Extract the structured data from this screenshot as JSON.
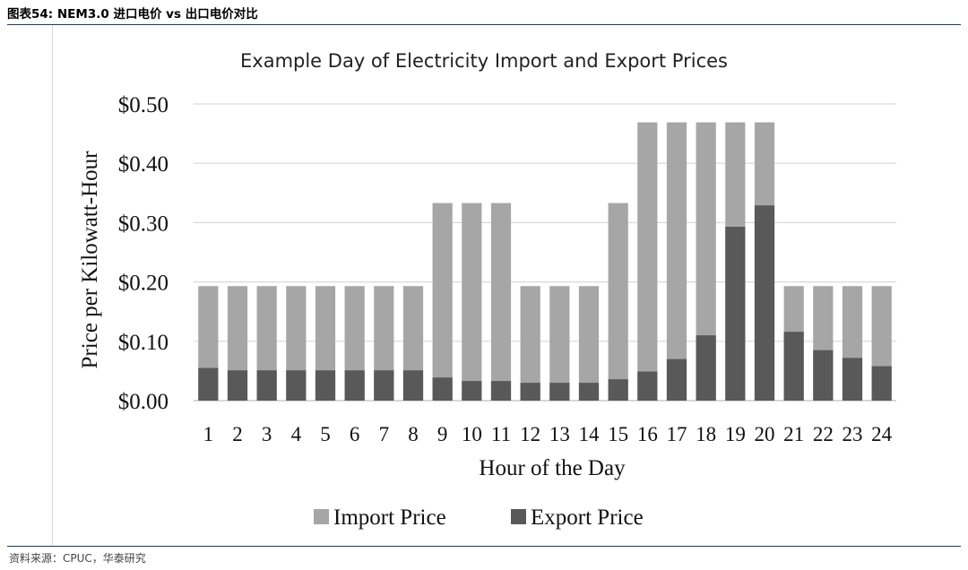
{
  "figure": {
    "caption": "图表54:  NEM3.0 进口电价 vs 出口电价对比",
    "source": "资料来源：CPUC，华泰研究"
  },
  "chart_data": {
    "type": "bar",
    "stacked": false,
    "title": "Example Day of Electricity  Import and Export Prices",
    "xlabel": "Hour of the Day",
    "ylabel": "Price per Kilowatt-Hour",
    "ylim": [
      0,
      0.5
    ],
    "yticks": [
      "$0.00",
      "$0.10",
      "$0.20",
      "$0.30",
      "$0.40",
      "$0.50"
    ],
    "grid": true,
    "legend_position": "bottom",
    "categories": [
      "1",
      "2",
      "3",
      "4",
      "5",
      "6",
      "7",
      "8",
      "9",
      "10",
      "11",
      "12",
      "13",
      "14",
      "15",
      "16",
      "17",
      "18",
      "19",
      "20",
      "21",
      "22",
      "23",
      "24"
    ],
    "series": [
      {
        "name": "Import Price",
        "color": "#a6a6a6",
        "values": [
          0.193,
          0.193,
          0.193,
          0.193,
          0.193,
          0.193,
          0.193,
          0.193,
          0.333,
          0.333,
          0.333,
          0.193,
          0.193,
          0.193,
          0.333,
          0.469,
          0.469,
          0.469,
          0.469,
          0.469,
          0.193,
          0.193,
          0.193,
          0.193
        ]
      },
      {
        "name": "Export Price",
        "color": "#595959",
        "values": [
          0.055,
          0.051,
          0.051,
          0.051,
          0.051,
          0.051,
          0.051,
          0.051,
          0.039,
          0.033,
          0.033,
          0.03,
          0.03,
          0.03,
          0.036,
          0.049,
          0.07,
          0.11,
          0.293,
          0.329,
          0.116,
          0.085,
          0.072,
          0.058
        ]
      }
    ]
  }
}
